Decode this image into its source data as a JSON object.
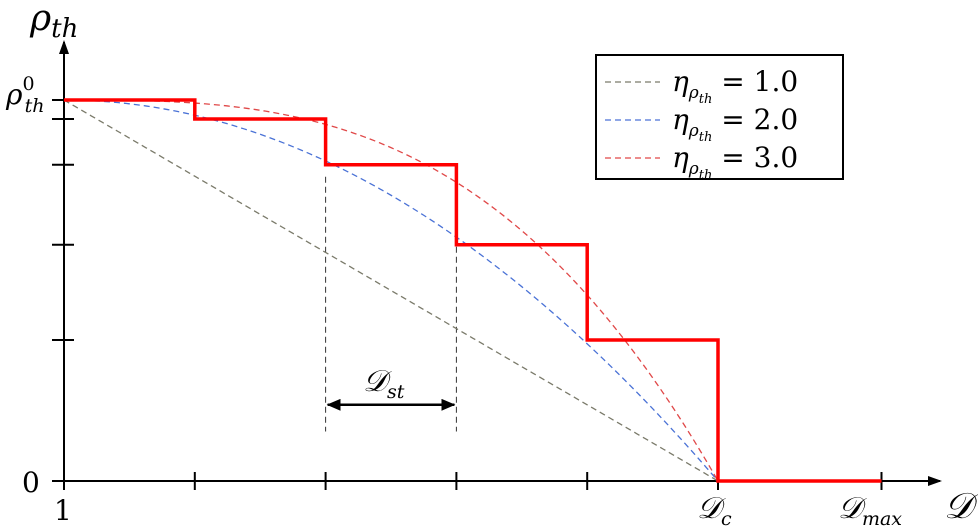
{
  "chart_data": {
    "type": "line",
    "y_axis": {
      "symbol": "ρ",
      "subscript": "th"
    },
    "x_axis": {
      "symbol": "𝒟"
    },
    "y_ticks": {
      "top": {
        "base": "ρ",
        "sub": "th",
        "sup": "0"
      },
      "zero": "0",
      "minor_levels": [
        0.95,
        0.83,
        0.62,
        0.37
      ]
    },
    "x_ticks": {
      "origin": "1",
      "dc": {
        "base": "𝒟",
        "sub": "c"
      },
      "dmax": {
        "base": "𝒟",
        "sub": "max"
      },
      "minor_positions": [
        0.2,
        0.4,
        0.6,
        0.8
      ]
    },
    "xlim": [
      0,
      1.25
    ],
    "ylim": [
      0,
      1
    ],
    "legend": {
      "placement": "top-right",
      "prefix": "η",
      "sub": "ρ",
      "subsub": "th",
      "relation": "="
    },
    "series": [
      {
        "name": "1.0",
        "eta": 1.0,
        "color": "#7a7a6a"
      },
      {
        "name": "2.0",
        "eta": 2.0,
        "color": "#4a72d6"
      },
      {
        "name": "3.0",
        "eta": 3.0,
        "color": "#e04848"
      }
    ],
    "staircase": {
      "color": "#ff0000",
      "points": [
        [
          0,
          1.0
        ],
        [
          0.2,
          1.0
        ],
        [
          0.2,
          0.95
        ],
        [
          0.4,
          0.95
        ],
        [
          0.4,
          0.83
        ],
        [
          0.6,
          0.83
        ],
        [
          0.6,
          0.62
        ],
        [
          0.8,
          0.62
        ],
        [
          0.8,
          0.37
        ],
        [
          1.0,
          0.37
        ],
        [
          1.0,
          0.0
        ],
        [
          1.25,
          0.0
        ]
      ]
    },
    "annotation": {
      "label": {
        "base": "𝒟",
        "sub": "st"
      },
      "from": 0.4,
      "to": 0.6,
      "y": 0.2
    }
  }
}
